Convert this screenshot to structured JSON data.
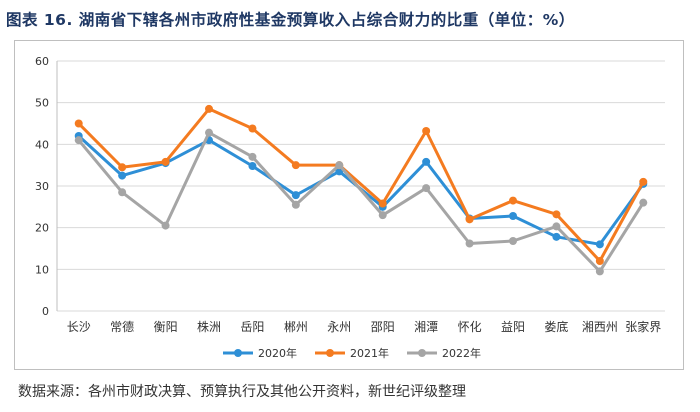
{
  "title": "图表 16. 湖南省下辖各州市政府性基金预算收入占综合财力的比重（单位：%）",
  "source": "数据来源：各州市财政决算、预算执行及其他公开资料，新世纪评级整理",
  "chart_data": {
    "type": "line",
    "title": "",
    "xlabel": "",
    "ylabel": "",
    "categories": [
      "长沙",
      "常德",
      "衡阳",
      "株洲",
      "岳阳",
      "郴州",
      "永州",
      "邵阳",
      "湘潭",
      "怀化",
      "益阳",
      "娄底",
      "湘西州",
      "张家界"
    ],
    "ylim": [
      0,
      60
    ],
    "yticks": [
      0,
      10,
      20,
      30,
      40,
      50,
      60
    ],
    "grid": true,
    "legend_position": "bottom",
    "series": [
      {
        "name": "2020年",
        "color": "#2e8fd6",
        "values": [
          42.0,
          32.5,
          35.5,
          41.0,
          34.8,
          27.8,
          33.5,
          25.0,
          35.8,
          22.2,
          22.8,
          17.8,
          16.0,
          30.5
        ]
      },
      {
        "name": "2021年",
        "color": "#f47b20",
        "values": [
          45.0,
          34.5,
          35.8,
          48.5,
          43.8,
          35.0,
          35.0,
          25.8,
          43.2,
          22.0,
          26.5,
          23.2,
          12.0,
          31.0
        ]
      },
      {
        "name": "2022年",
        "color": "#a5a5a5",
        "values": [
          41.0,
          28.5,
          20.5,
          42.8,
          37.0,
          25.5,
          35.0,
          23.0,
          29.5,
          16.2,
          16.8,
          20.3,
          9.5,
          26.0
        ]
      }
    ]
  }
}
